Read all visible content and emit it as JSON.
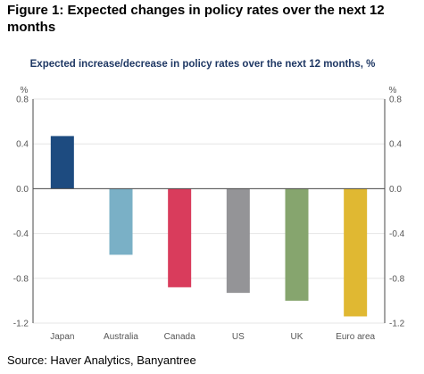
{
  "figure": {
    "heading": "Figure 1: Expected changes in policy rates over the next 12 months",
    "source": "Source: Haver Analytics, Banyantree"
  },
  "chart_data": {
    "type": "bar",
    "title": "Expected increase/decrease in policy rates over the next 12 months, %",
    "xlabel": "",
    "ylabel": "",
    "left_axis_unit": "%",
    "right_axis_unit": "%",
    "categories": [
      "Japan",
      "Australia",
      "Canada",
      "US",
      "UK",
      "Euro area"
    ],
    "values": [
      0.47,
      -0.59,
      -0.88,
      -0.93,
      -1.0,
      -1.14
    ],
    "colors": [
      "#1d4b80",
      "#7ab0c6",
      "#d93c5c",
      "#949497",
      "#86a56e",
      "#e0b832"
    ],
    "ylim": [
      -1.2,
      0.8
    ],
    "yticks": [
      0.8,
      0.4,
      0.0,
      -0.4,
      -0.8,
      -1.2
    ],
    "ytick_labels": [
      "0.8",
      "0.4",
      "0.0",
      "-0.4",
      "-0.8",
      "-1.2"
    ],
    "grid": true,
    "legend": "none",
    "title_color": "#1f3864",
    "axis_color": "#4a4a4a",
    "grid_color": "#e6e6e6"
  }
}
